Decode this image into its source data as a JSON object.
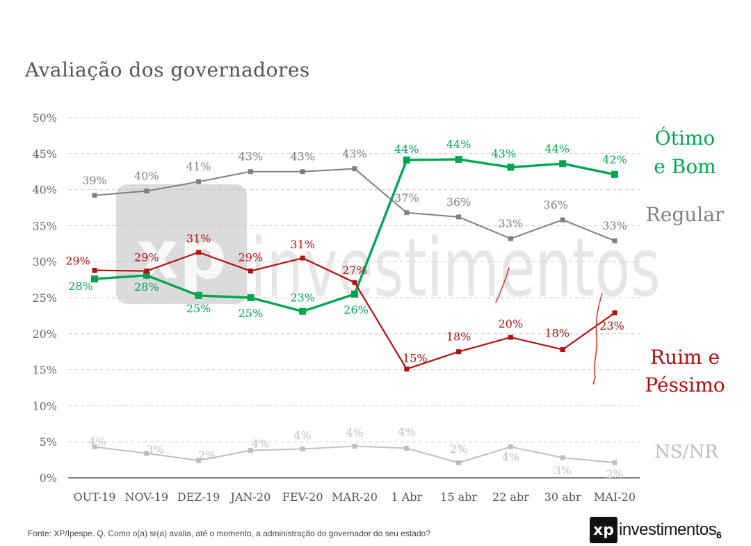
{
  "title": "Avaliação dos governadores",
  "source": "Fonte: XP/Ipespe. Q. Como o(a) sr(a) avalia, até o momento, a administração do governador do seu estado?",
  "logo": {
    "mark": "xp",
    "text": "investimentos"
  },
  "watermark": {
    "mark": "xp",
    "text": "investimentos"
  },
  "page_number": "6",
  "chart_data": {
    "type": "line",
    "categories": [
      "OUT-19",
      "NOV-19",
      "DEZ-19",
      "JAN-20",
      "FEV-20",
      "MAR-20",
      "1 Abr",
      "15 abr",
      "22 abr",
      "30 abr",
      "MAI-20"
    ],
    "ylim": [
      0,
      50
    ],
    "yticks": [
      "0%",
      "5%",
      "10%",
      "15%",
      "20%",
      "25%",
      "30%",
      "35%",
      "40%",
      "45%",
      "50%"
    ],
    "grid": true,
    "series": [
      {
        "key": "regular",
        "name": "Regular",
        "color": "#7f7f7f",
        "values": [
          39.2,
          39.8,
          41.1,
          42.5,
          42.5,
          42.9,
          36.8,
          36.2,
          33.2,
          35.8,
          32.9
        ],
        "labels": [
          "39%",
          "40%",
          "41%",
          "43%",
          "43%",
          "43%",
          "37%",
          "36%",
          "33%",
          "36%",
          "33%"
        ]
      },
      {
        "key": "otimo",
        "name": "Ótimo e Bom",
        "color": "#00a650",
        "values": [
          27.6,
          28.1,
          25.3,
          25.0,
          23.1,
          25.5,
          44.1,
          44.2,
          43.1,
          43.6,
          42.1
        ],
        "labels": [
          "28%",
          "28%",
          "25%",
          "25%",
          "23%",
          "26%",
          "44%",
          "44%",
          "43%",
          "44%",
          "42%"
        ]
      },
      {
        "key": "ruim",
        "name": "Ruim e Péssimo",
        "color": "#b30e0e",
        "values": [
          28.8,
          28.7,
          31.3,
          28.7,
          30.5,
          27.1,
          15.1,
          17.5,
          19.5,
          17.8,
          22.9
        ],
        "labels": [
          "29%",
          "29%",
          "31%",
          "29%",
          "31%",
          "27%",
          "15%",
          "18%",
          "20%",
          "18%",
          "23%"
        ]
      },
      {
        "key": "nsnr",
        "name": "NS/NR",
        "color": "#bfbfbf",
        "values": [
          4.3,
          3.4,
          2.4,
          3.8,
          4.0,
          4.4,
          4.1,
          2.1,
          4.3,
          2.8,
          2.1
        ],
        "labels": [
          "4%",
          "3%",
          "2%",
          "4%",
          "4%",
          "4%",
          "4%",
          "2%",
          "4%",
          "3%",
          "2%"
        ]
      }
    ],
    "legend": [
      {
        "key": "otimo",
        "lines": [
          "Ótimo",
          "e Bom"
        ],
        "color": "#00a650"
      },
      {
        "key": "regular",
        "lines": [
          "Regular"
        ],
        "color": "#7f7f7f"
      },
      {
        "key": "ruim",
        "lines": [
          "Ruim e",
          "Péssimo"
        ],
        "color": "#b30e0e"
      },
      {
        "key": "nsnr",
        "lines": [
          "NS/NR"
        ],
        "color": "#bfbfbf"
      }
    ]
  }
}
